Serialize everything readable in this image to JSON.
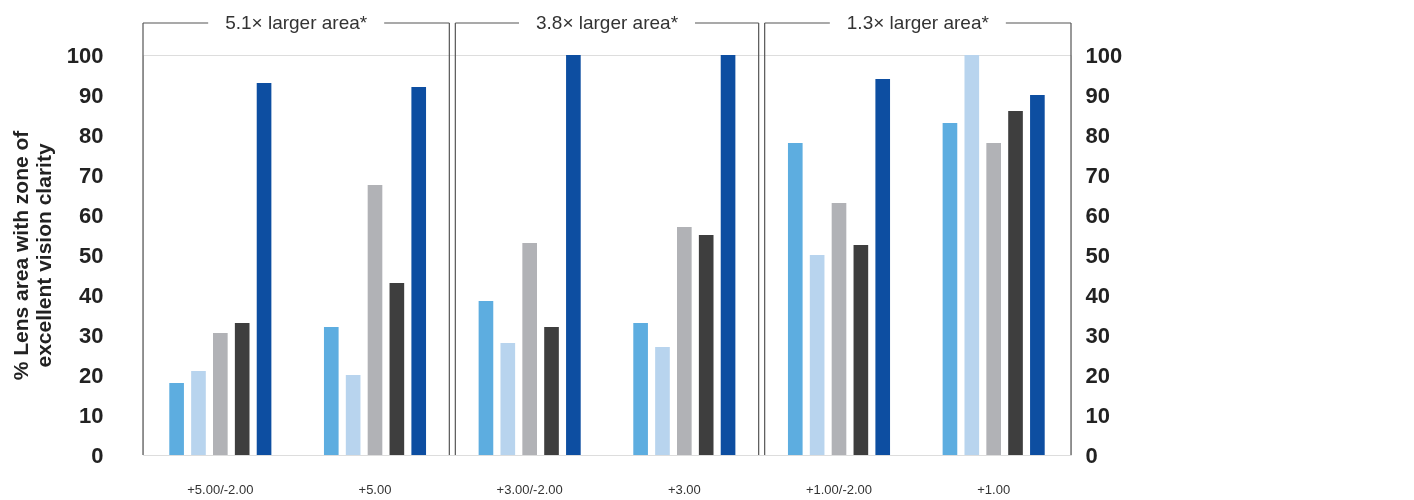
{
  "chart_data": {
    "type": "bar",
    "ylabel": "% Lens area with zone of\nexcellent vision clarity",
    "categories": [
      "+5.00/-2.00",
      "+5.00",
      "+3.00/-2.00",
      "+3.00",
      "+1.00/-2.00",
      "+1.00"
    ],
    "series": [
      {
        "color": "#5dade0",
        "values": [
          18,
          32,
          38.5,
          33,
          78,
          83
        ]
      },
      {
        "color": "#b8d4ee",
        "values": [
          21,
          20,
          28,
          27,
          50,
          100
        ]
      },
      {
        "color": "#b1b2b6",
        "values": [
          30.5,
          67.5,
          53,
          57,
          63,
          78
        ]
      },
      {
        "color": "#3e3e3e",
        "values": [
          33,
          43,
          32,
          55,
          52.5,
          86
        ]
      },
      {
        "color": "#0d4ea1",
        "values": [
          93,
          92,
          100,
          100,
          94,
          90
        ]
      }
    ],
    "ylim": [
      0,
      100
    ],
    "yticks": [
      0,
      10,
      20,
      30,
      40,
      50,
      60,
      70,
      80,
      90,
      100
    ],
    "y2lim": [
      0,
      100
    ],
    "y2ticks": [
      0,
      10,
      20,
      30,
      40,
      50,
      60,
      70,
      80,
      90,
      100
    ],
    "annotations": [
      "5.1× larger area*",
      "3.8× larger area*",
      "1.3× larger area*"
    ],
    "grid": false,
    "legend": false
  }
}
